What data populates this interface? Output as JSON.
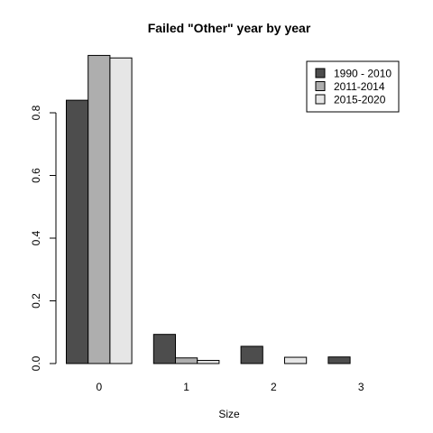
{
  "chart_data": {
    "type": "bar",
    "title": "Failed \"Other\" year by year",
    "xlabel": "Size",
    "ylabel": "",
    "categories": [
      "0",
      "1",
      "2",
      "3"
    ],
    "series": [
      {
        "name": "1990 - 2010",
        "color": "#4d4d4d",
        "values": [
          0.84,
          0.093,
          0.055,
          0.021
        ]
      },
      {
        "name": "2011-2014",
        "color": "#aeaeae",
        "values": [
          0.983,
          0.018,
          0.0,
          0.0
        ]
      },
      {
        "name": "2015-2020",
        "color": "#e6e6e6",
        "values": [
          0.975,
          0.01,
          0.02,
          0.0
        ]
      }
    ],
    "ylim": [
      0,
      0.99
    ],
    "yticks": [
      0.0,
      0.2,
      0.4,
      0.6,
      0.8
    ],
    "ytick_labels": [
      "0.0",
      "0.2",
      "0.4",
      "0.6",
      "0.8"
    ],
    "grid": false,
    "legend_position": "top-right"
  }
}
